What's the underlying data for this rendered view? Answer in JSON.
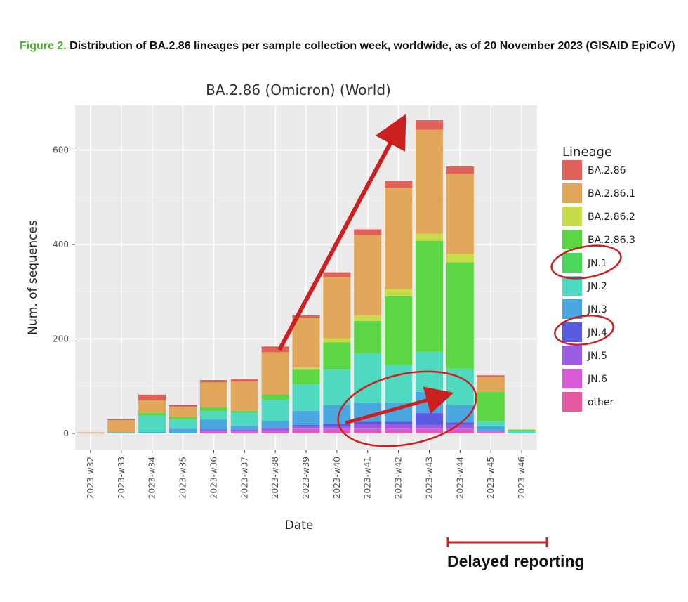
{
  "caption": {
    "figure_label": "Figure 2.",
    "text": "Distribution of BA.2.86 lineages per sample collection week, worldwide, as of 20 November 2023 (GISAID EpiCoV)"
  },
  "annotations": {
    "delayed_reporting": "Delayed reporting",
    "arrow_color": "#cc1f1f"
  },
  "chart_data": {
    "type": "bar",
    "stacked": true,
    "title": "BA.2.86 (Omicron) (World)",
    "xlabel": "Date",
    "ylabel": "Num. of sequences",
    "ylim": [
      -10,
      690
    ],
    "yticks": [
      0,
      200,
      400,
      600
    ],
    "grid": true,
    "legend_title": "Lineage",
    "legend_position": "right",
    "categories": [
      "2023-w32",
      "2023-w33",
      "2023-w34",
      "2023-w35",
      "2023-w36",
      "2023-w37",
      "2023-w38",
      "2023-w39",
      "2023-w40",
      "2023-w41",
      "2023-w42",
      "2023-w43",
      "2023-w44",
      "2023-w45",
      "2023-w46"
    ],
    "series": [
      {
        "name": "other",
        "color": "#e45aa0",
        "values": [
          0,
          0,
          0,
          0,
          3,
          2,
          3,
          5,
          5,
          5,
          5,
          5,
          5,
          2,
          0
        ]
      },
      {
        "name": "JN.6",
        "color": "#d95bd6",
        "values": [
          0,
          0,
          0,
          0,
          3,
          3,
          3,
          5,
          5,
          5,
          5,
          5,
          5,
          2,
          0
        ]
      },
      {
        "name": "JN.5",
        "color": "#9b5ce0",
        "values": [
          0,
          0,
          0,
          0,
          3,
          3,
          5,
          5,
          5,
          10,
          10,
          8,
          8,
          2,
          0
        ]
      },
      {
        "name": "JN.4",
        "color": "#5a5ae0",
        "values": [
          0,
          0,
          0,
          0,
          0,
          0,
          0,
          3,
          5,
          5,
          5,
          25,
          5,
          0,
          0
        ]
      },
      {
        "name": "JN.3",
        "color": "#4aa7e0",
        "values": [
          0,
          0,
          3,
          10,
          20,
          8,
          15,
          30,
          40,
          40,
          40,
          45,
          37,
          9,
          0
        ]
      },
      {
        "name": "JN.2",
        "color": "#4ed9c0",
        "values": [
          0,
          2,
          35,
          20,
          18,
          27,
          45,
          55,
          75,
          105,
          80,
          85,
          77,
          10,
          5
        ]
      },
      {
        "name": "JN.1",
        "color": "#4cd65c",
        "values": [
          0,
          0,
          0,
          0,
          0,
          0,
          0,
          0,
          0,
          0,
          0,
          0,
          0,
          0,
          0
        ]
      },
      {
        "name": "BA.2.86.3",
        "color": "#5cd645",
        "values": [
          0,
          1,
          5,
          5,
          8,
          5,
          12,
          32,
          58,
          68,
          145,
          235,
          225,
          63,
          3
        ]
      },
      {
        "name": "BA.2.86.2",
        "color": "#c8dc4a",
        "values": [
          0,
          0,
          0,
          0,
          0,
          0,
          0,
          5,
          8,
          12,
          15,
          15,
          18,
          0,
          0
        ]
      },
      {
        "name": "BA.2.86.1",
        "color": "#e0a75a",
        "values": [
          1,
          25,
          27,
          20,
          53,
          62,
          89,
          105,
          130,
          170,
          215,
          220,
          170,
          32,
          0
        ]
      },
      {
        "name": "BA.2.86",
        "color": "#e0605a",
        "values": [
          1,
          2,
          12,
          5,
          5,
          6,
          12,
          5,
          10,
          12,
          15,
          20,
          15,
          3,
          0
        ]
      }
    ]
  }
}
